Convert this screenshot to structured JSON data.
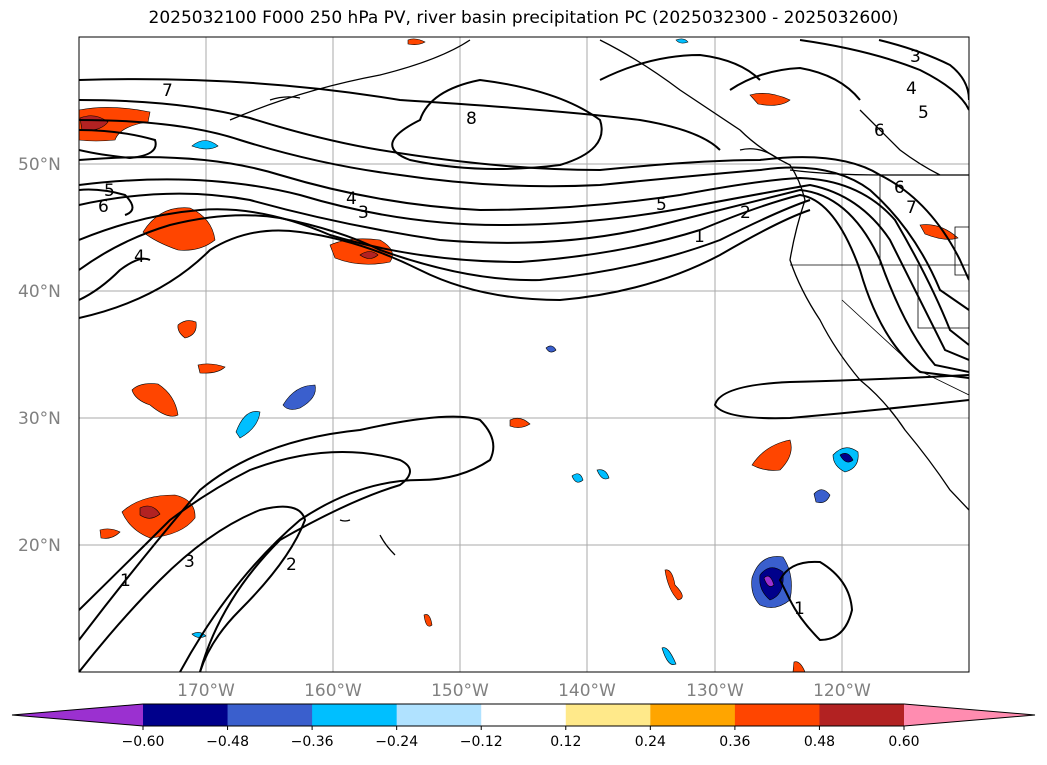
{
  "title": "2025032100 F000 250 hPa PV, river basin precipitation PC (2025032300 - 2025032600)",
  "map": {
    "lon_range": [
      -180,
      -110
    ],
    "lat_range": [
      10,
      60
    ],
    "lat_labels": [
      "50°N",
      "40°N",
      "30°N",
      "20°N"
    ],
    "lat_values": [
      50,
      40,
      30,
      20
    ],
    "lon_labels": [
      "170°W",
      "160°W",
      "150°W",
      "140°W",
      "130°W",
      "120°W"
    ],
    "lon_values": [
      -170,
      -160,
      -150,
      -140,
      -130,
      -120
    ],
    "grid": true,
    "contour_labels": [
      "7",
      "8",
      "5",
      "6",
      "4",
      "3",
      "5",
      "2",
      "1",
      "4",
      "5",
      "6",
      "6",
      "7",
      "1",
      "3",
      "2",
      "1",
      "3",
      "4"
    ]
  },
  "colorbar": {
    "tick_labels": [
      "−0.60",
      "−0.48",
      "−0.36",
      "−0.24",
      "−0.12",
      "0.12",
      "0.24",
      "0.36",
      "0.48",
      "0.60"
    ],
    "colors": [
      "#9b30d0",
      "#00008b",
      "#3a5fcd",
      "#00bfff",
      "#b0e2ff",
      "#ffffff",
      "#ffe98a",
      "#ffa500",
      "#ff4500",
      "#b22222",
      "#ff8cb0"
    ],
    "extend": "both"
  }
}
